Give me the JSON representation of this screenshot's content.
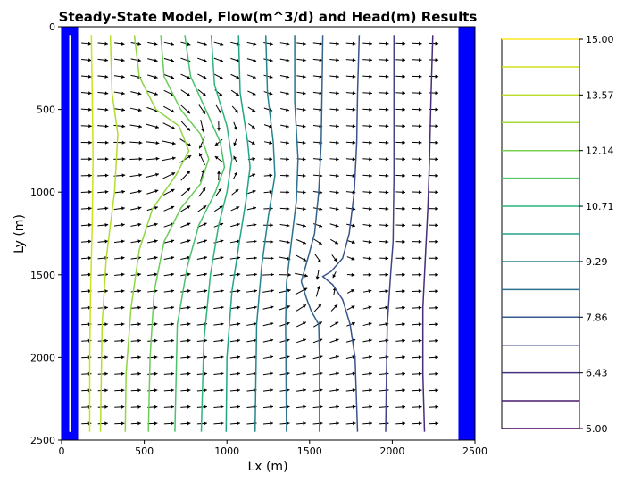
{
  "chart_data": {
    "type": "contour",
    "title": "Steady-State Model, Flow(m^3/d) and Head(m) Results",
    "xlabel": "Lx (m)",
    "ylabel": "Ly (m)",
    "xlim": [
      0,
      2500
    ],
    "ylim": [
      2500,
      0
    ],
    "y_axis_inverted": true,
    "x_ticks": [
      0,
      500,
      1000,
      1500,
      2000,
      2500
    ],
    "y_ticks": [
      0,
      500,
      1000,
      1500,
      2000,
      2500
    ],
    "grid": false,
    "boundaries": {
      "left": {
        "x_from": 0,
        "x_to": 100,
        "color": "#0000ff"
      },
      "right": {
        "x_from": 2400,
        "x_to": 2500,
        "color": "#0000ff"
      },
      "left_inner_line": {
        "x": 50,
        "y_from": 50,
        "y_to": 2450,
        "color": "#ffffff"
      }
    },
    "contours": [
      {
        "level": 14.5,
        "color": "#cde11d",
        "points": [
          [
            180,
            50
          ],
          [
            185,
            400
          ],
          [
            190,
            800
          ],
          [
            185,
            1200
          ],
          [
            175,
            1600
          ],
          [
            170,
            2000
          ],
          [
            170,
            2450
          ]
        ]
      },
      {
        "level": 13.86,
        "color": "#b5de2b",
        "points": [
          [
            295,
            50
          ],
          [
            305,
            400
          ],
          [
            340,
            650
          ],
          [
            320,
            1000
          ],
          [
            270,
            1400
          ],
          [
            245,
            1800
          ],
          [
            235,
            2450
          ]
        ]
      },
      {
        "level": 13.21,
        "color": "#90d743",
        "points": [
          [
            440,
            50
          ],
          [
            470,
            300
          ],
          [
            570,
            500
          ],
          [
            710,
            600
          ],
          [
            770,
            750
          ],
          [
            690,
            900
          ],
          [
            550,
            1100
          ],
          [
            470,
            1350
          ],
          [
            420,
            1700
          ],
          [
            390,
            2100
          ],
          [
            385,
            2450
          ]
        ]
      },
      {
        "level": 12.57,
        "color": "#6ccd5a",
        "points": [
          [
            600,
            50
          ],
          [
            620,
            300
          ],
          [
            720,
            500
          ],
          [
            840,
            650
          ],
          [
            890,
            800
          ],
          [
            840,
            950
          ],
          [
            720,
            1100
          ],
          [
            620,
            1300
          ],
          [
            560,
            1600
          ],
          [
            535,
            2000
          ],
          [
            525,
            2450
          ]
        ]
      },
      {
        "level": 11.93,
        "color": "#4ac16d",
        "points": [
          [
            745,
            50
          ],
          [
            780,
            300
          ],
          [
            880,
            520
          ],
          [
            960,
            700
          ],
          [
            985,
            850
          ],
          [
            930,
            1000
          ],
          [
            830,
            1200
          ],
          [
            760,
            1450
          ],
          [
            700,
            1800
          ],
          [
            685,
            2450
          ]
        ]
      },
      {
        "level": 11.29,
        "color": "#2fb47c",
        "points": [
          [
            905,
            50
          ],
          [
            925,
            350
          ],
          [
            1000,
            600
          ],
          [
            1030,
            800
          ],
          [
            1000,
            1000
          ],
          [
            950,
            1200
          ],
          [
            900,
            1500
          ],
          [
            860,
            1900
          ],
          [
            845,
            2450
          ]
        ]
      },
      {
        "level": 10.64,
        "color": "#21a585",
        "points": [
          [
            1070,
            50
          ],
          [
            1080,
            400
          ],
          [
            1125,
            700
          ],
          [
            1140,
            850
          ],
          [
            1115,
            1050
          ],
          [
            1075,
            1300
          ],
          [
            1030,
            1600
          ],
          [
            1000,
            2000
          ],
          [
            995,
            2450
          ]
        ]
      },
      {
        "level": 10.0,
        "color": "#25858e",
        "points": [
          [
            1235,
            50
          ],
          [
            1245,
            400
          ],
          [
            1280,
            700
          ],
          [
            1290,
            900
          ],
          [
            1250,
            1150
          ],
          [
            1210,
            1450
          ],
          [
            1180,
            1800
          ],
          [
            1170,
            2450
          ]
        ]
      },
      {
        "level": 9.36,
        "color": "#2c728e",
        "points": [
          [
            1410,
            50
          ],
          [
            1410,
            450
          ],
          [
            1430,
            800
          ],
          [
            1420,
            1050
          ],
          [
            1390,
            1300
          ],
          [
            1360,
            1550
          ],
          [
            1355,
            1800
          ],
          [
            1360,
            2450
          ]
        ]
      },
      {
        "level": 8.71,
        "color": "#33638d",
        "points": [
          [
            1580,
            50
          ],
          [
            1575,
            400
          ],
          [
            1570,
            700
          ],
          [
            1555,
            1000
          ],
          [
            1530,
            1250
          ],
          [
            1490,
            1400
          ],
          [
            1450,
            1540
          ],
          [
            1480,
            1640
          ],
          [
            1510,
            1720
          ],
          [
            1555,
            1800
          ],
          [
            1560,
            2000
          ],
          [
            1560,
            2450
          ]
        ]
      },
      {
        "level": 8.07,
        "color": "#3b528b",
        "points": [
          [
            1800,
            50
          ],
          [
            1790,
            400
          ],
          [
            1785,
            700
          ],
          [
            1770,
            1000
          ],
          [
            1740,
            1250
          ],
          [
            1700,
            1400
          ],
          [
            1630,
            1480
          ],
          [
            1580,
            1510
          ],
          [
            1640,
            1560
          ],
          [
            1700,
            1650
          ],
          [
            1745,
            1800
          ],
          [
            1775,
            2000
          ],
          [
            1790,
            2450
          ]
        ]
      },
      {
        "level": 7.43,
        "color": "#414487",
        "points": [
          [
            2010,
            50
          ],
          [
            2010,
            450
          ],
          [
            2010,
            900
          ],
          [
            2005,
            1300
          ],
          [
            1990,
            1500
          ],
          [
            1970,
            1800
          ],
          [
            1965,
            2100
          ],
          [
            1960,
            2450
          ]
        ]
      },
      {
        "level": 6.79,
        "color": "#472c7a",
        "points": [
          [
            2245,
            50
          ],
          [
            2235,
            400
          ],
          [
            2225,
            800
          ],
          [
            2215,
            1100
          ],
          [
            2200,
            1400
          ],
          [
            2185,
            1700
          ],
          [
            2185,
            2100
          ],
          [
            2195,
            2450
          ]
        ]
      }
    ],
    "quiver": {
      "description": "flow direction arrows on a regular grid",
      "x_start": 150,
      "x_step": 100,
      "x_count": 22,
      "y_start": 100,
      "y_step": 100,
      "y_count": 24,
      "source_dx": 0,
      "color": "#000000"
    },
    "colorbar": {
      "vmin": 5.0,
      "vmax": 15.0,
      "tick_labels": [
        "15.00",
        "13.57",
        "12.14",
        "10.71",
        "9.29",
        "7.86",
        "6.43",
        "5.00"
      ],
      "tick_values": [
        15.0,
        13.57,
        12.14,
        10.71,
        9.29,
        7.86,
        6.43,
        5.0
      ],
      "levels": [
        {
          "level": 15.0,
          "color": "#fde725"
        },
        {
          "level": 14.29,
          "color": "#d0e11c"
        },
        {
          "level": 13.57,
          "color": "#bade28"
        },
        {
          "level": 12.86,
          "color": "#a5db36"
        },
        {
          "level": 12.14,
          "color": "#7ad151"
        },
        {
          "level": 11.43,
          "color": "#52c569"
        },
        {
          "level": 10.71,
          "color": "#2fb47c"
        },
        {
          "level": 10.0,
          "color": "#25a18e"
        },
        {
          "level": 9.29,
          "color": "#26828e"
        },
        {
          "level": 8.57,
          "color": "#2e6e8e"
        },
        {
          "level": 7.86,
          "color": "#375a8c"
        },
        {
          "level": 7.14,
          "color": "#404688"
        },
        {
          "level": 6.43,
          "color": "#46337f"
        },
        {
          "level": 5.71,
          "color": "#481c6e"
        },
        {
          "level": 5.0,
          "color": "#440154"
        }
      ]
    }
  }
}
